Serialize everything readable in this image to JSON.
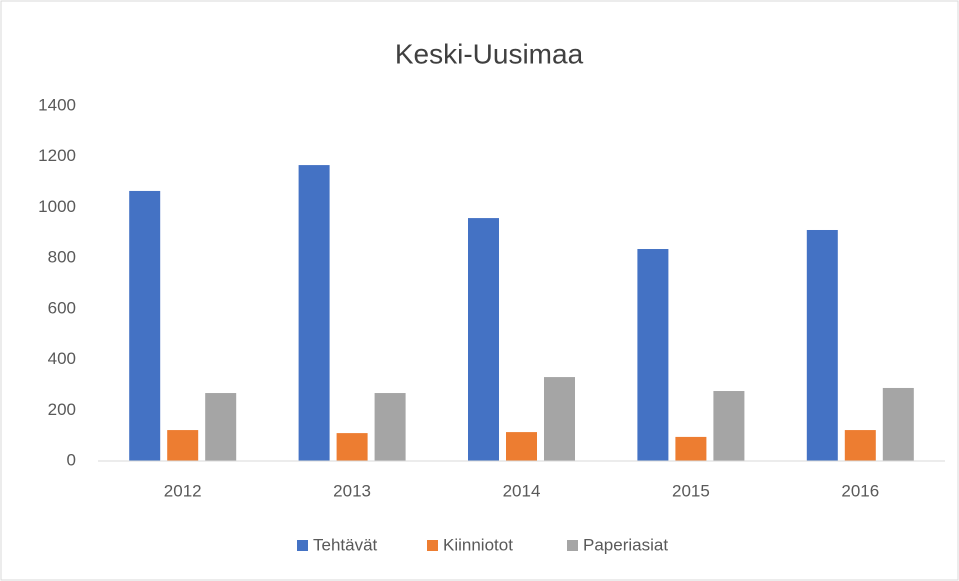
{
  "chart_data": {
    "type": "bar",
    "title": "Keski-Uusimaa",
    "categories": [
      "2012",
      "2013",
      "2014",
      "2015",
      "2016"
    ],
    "series": [
      {
        "name": "Tehtävät",
        "color": "#4472c4",
        "values": [
          1065,
          1167,
          958,
          836,
          911
        ]
      },
      {
        "name": "Kiinniotot",
        "color": "#ed7d31",
        "values": [
          122,
          110,
          114,
          95,
          122
        ]
      },
      {
        "name": "Paperiasiat",
        "color": "#a5a5a5",
        "values": [
          268,
          268,
          331,
          276,
          288
        ]
      }
    ],
    "ylim": [
      0,
      1400
    ],
    "yticks": [
      0,
      200,
      400,
      600,
      800,
      1000,
      1200,
      1400
    ],
    "grid": false,
    "legend": "bottom"
  }
}
